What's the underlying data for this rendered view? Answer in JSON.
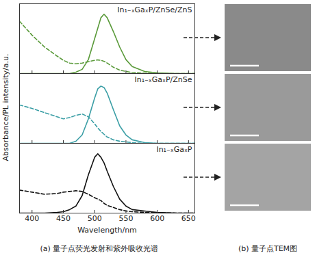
{
  "chart_data": [
    {
      "type": "line",
      "title": "In₁₋ₓGaₓP/ZnSe/ZnS",
      "x": [
        380,
        400,
        420,
        440,
        450,
        460,
        470,
        480,
        490,
        500,
        505,
        510,
        515,
        520,
        530,
        540,
        550,
        560,
        580,
        600,
        630,
        660
      ],
      "xlim": [
        380,
        660
      ],
      "xticks": [
        400,
        450,
        500,
        550,
        600,
        650
      ],
      "ylim": [
        0,
        1
      ],
      "tick_labels": false,
      "series": [
        {
          "type": "line",
          "color": "#5a9a3a",
          "line_style": "solid",
          "values": [
            0,
            0,
            0,
            0,
            0,
            0,
            0.02,
            0.06,
            0.2,
            0.5,
            0.65,
            0.8,
            0.85,
            0.8,
            0.6,
            0.38,
            0.2,
            0.1,
            0.03,
            0.01,
            0,
            0
          ]
        },
        {
          "type": "line",
          "color": "#5a9a3a",
          "line_style": "dashed",
          "values": [
            0.75,
            0.55,
            0.38,
            0.25,
            0.19,
            0.15,
            0.14,
            0.15,
            0.17,
            0.19,
            0.195,
            0.19,
            0.175,
            0.15,
            0.09,
            0.05,
            0.03,
            0.015,
            0.005,
            0,
            0,
            0
          ]
        }
      ]
    },
    {
      "type": "line",
      "title": "In₁₋ₓGaₓP/ZnSe",
      "ylabel": "Absorbance/PL intensity/a.u.",
      "x": [
        380,
        400,
        420,
        440,
        450,
        460,
        470,
        480,
        490,
        500,
        505,
        510,
        515,
        520,
        530,
        540,
        550,
        560,
        580,
        600,
        630,
        660
      ],
      "xlim": [
        380,
        660
      ],
      "xticks": [
        400,
        450,
        500,
        550,
        600,
        650
      ],
      "ylim": [
        0,
        1
      ],
      "tick_labels": false,
      "series": [
        {
          "type": "line",
          "color": "#3a9ea5",
          "line_style": "solid",
          "values": [
            0,
            0,
            0,
            0,
            0,
            0,
            0.03,
            0.12,
            0.35,
            0.65,
            0.78,
            0.82,
            0.8,
            0.72,
            0.48,
            0.25,
            0.12,
            0.05,
            0.01,
            0,
            0,
            0
          ]
        },
        {
          "type": "line",
          "color": "#3a9ea5",
          "line_style": "dashed",
          "values": [
            0.55,
            0.5,
            0.44,
            0.38,
            0.35,
            0.37,
            0.4,
            0.42,
            0.38,
            0.28,
            0.22,
            0.17,
            0.13,
            0.09,
            0.05,
            0.03,
            0.02,
            0.01,
            0,
            0,
            0,
            0
          ]
        }
      ]
    },
    {
      "type": "line",
      "title": "In₁₋ₓGaₓP",
      "xlabel": "Wavelength/nm",
      "x": [
        380,
        400,
        420,
        440,
        450,
        460,
        470,
        480,
        490,
        500,
        505,
        510,
        515,
        520,
        530,
        540,
        550,
        560,
        580,
        600,
        630,
        660
      ],
      "xlim": [
        380,
        660
      ],
      "xticks": [
        400,
        450,
        500,
        550,
        600,
        650
      ],
      "ylim": [
        0,
        1
      ],
      "tick_labels": "x",
      "series": [
        {
          "type": "line",
          "color": "#111111",
          "line_style": "solid",
          "values": [
            0,
            0,
            0,
            0.01,
            0.02,
            0.05,
            0.1,
            0.25,
            0.55,
            0.8,
            0.85,
            0.8,
            0.72,
            0.6,
            0.38,
            0.2,
            0.1,
            0.05,
            0.03,
            0.01,
            0,
            0
          ]
        },
        {
          "type": "line",
          "color": "#111111",
          "line_style": "dashed",
          "values": [
            0.33,
            0.3,
            0.27,
            0.28,
            0.3,
            0.31,
            0.32,
            0.31,
            0.27,
            0.22,
            0.2,
            0.18,
            0.14,
            0.11,
            0.08,
            0.05,
            0.03,
            0.02,
            0.01,
            0.005,
            0,
            0
          ]
        }
      ]
    }
  ],
  "figure": {
    "captions": [
      "(a) 量子点荧光发射和紫外吸收光谱",
      "(b) 量子点TEM图"
    ]
  }
}
